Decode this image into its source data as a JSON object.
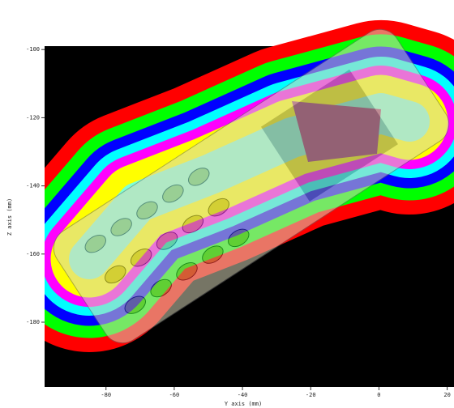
{
  "chart_data": {
    "type": "contour",
    "x_label": "Y axis (mm)",
    "y_label": "Z axis (mm)",
    "xlim": [
      -98,
      22
    ],
    "ylim": [
      -199,
      -99
    ],
    "xticks": [
      -80,
      -60,
      -40,
      -20,
      0,
      20
    ],
    "yticks": [
      -100,
      -120,
      -140,
      -160,
      -180
    ],
    "background": "#000000",
    "level_colors": [
      "#ff0000",
      "#00ff00",
      "#0000ff",
      "#00ffff",
      "#ff00ff",
      "#ffff00",
      "#7fffd4"
    ]
  }
}
